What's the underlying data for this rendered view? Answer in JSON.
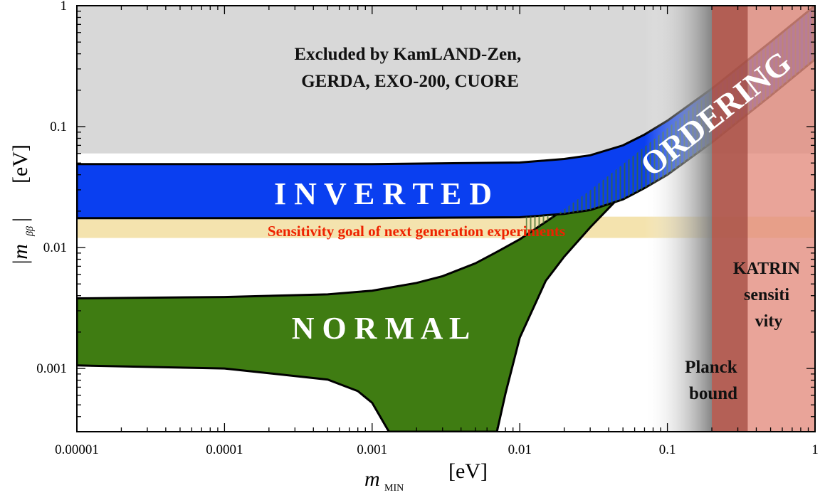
{
  "chart_data": {
    "type": "area",
    "xlabel": {
      "symbol": "m",
      "subscript": "MIN",
      "unit": "[eV]"
    },
    "ylabel": {
      "text": "|m",
      "subscript": "ββ",
      "bar": "|",
      "unit": "[eV]"
    },
    "x_scale": "log",
    "y_scale": "log",
    "xlim": [
      1e-05,
      1
    ],
    "ylim": [
      0.0003,
      1
    ],
    "x_ticks": [
      1e-05,
      0.0001,
      0.001,
      0.01,
      0.1,
      1
    ],
    "x_tick_labels": [
      "0.00001",
      "0.0001",
      "0.001",
      "0.01",
      "0.1",
      "1"
    ],
    "y_ticks": [
      0.001,
      0.01,
      0.1,
      1
    ],
    "y_tick_labels": [
      "0.001",
      "0.01",
      "0.1",
      "1"
    ],
    "regions": {
      "excluded": {
        "y_from": 0.06,
        "y_to": 1,
        "label_lines": [
          "Excluded by KamLAND-Zen,",
          "GERDA, EXO-200, CUORE"
        ],
        "color": "#d8d8d8"
      },
      "sensitivity_goal": {
        "y_from": 0.012,
        "y_to": 0.018,
        "label": "Sensitivity goal of next generation experiments",
        "color": "#f2dea0",
        "label_color": "#ee2200"
      },
      "planck": {
        "x_from": 0.07,
        "x_to": 0.2,
        "label_lines": [
          "Planck",
          "bound"
        ],
        "color": "#909090"
      },
      "katrin": {
        "x_from": 0.2,
        "x_to": 1,
        "dark_to": 0.35,
        "label_lines": [
          "KATRIN",
          "sensiti",
          "vity"
        ],
        "color": "#e38d80",
        "dark_color": "#a24a40"
      }
    },
    "bands": [
      {
        "name": "INVERTED",
        "color": "#0a3ff0",
        "upper": {
          "x": [
            1e-05,
            0.001,
            0.01,
            0.02,
            0.03,
            0.05,
            0.07,
            0.1,
            0.2,
            0.5,
            1
          ],
          "y": [
            0.049,
            0.049,
            0.0505,
            0.054,
            0.058,
            0.07,
            0.086,
            0.112,
            0.206,
            0.502,
            1.0
          ]
        },
        "lower": {
          "x": [
            1e-05,
            0.001,
            0.01,
            0.02,
            0.03,
            0.05,
            0.07,
            0.1,
            0.2,
            0.5,
            1
          ],
          "y": [
            0.0175,
            0.0175,
            0.0178,
            0.019,
            0.0204,
            0.025,
            0.031,
            0.04,
            0.074,
            0.18,
            0.36
          ]
        }
      },
      {
        "name": "NORMAL",
        "color": "#3f7c12",
        "upper": {
          "x": [
            1e-05,
            0.0001,
            0.0005,
            0.001,
            0.002,
            0.003,
            0.005,
            0.007,
            0.01,
            0.015,
            0.02,
            0.03,
            0.05,
            0.07,
            0.1,
            0.2,
            0.5,
            1
          ],
          "y": [
            0.0038,
            0.0039,
            0.0041,
            0.0044,
            0.0051,
            0.0058,
            0.0074,
            0.0092,
            0.0117,
            0.0163,
            0.0207,
            0.0298,
            0.049,
            0.068,
            0.097,
            0.195,
            0.49,
            0.98
          ]
        },
        "lower": {
          "x": [
            1e-05,
            0.0001,
            0.0005,
            0.0008,
            0.001,
            0.0013,
            0.002,
            0.003,
            0.004,
            0.005,
            0.006,
            0.007,
            0.008,
            0.01,
            0.015,
            0.02,
            0.03,
            0.05,
            0.07,
            0.1,
            0.2,
            0.5,
            1
          ],
          "y": [
            0.00106,
            0.001,
            0.00081,
            0.00065,
            0.00052,
            0.0003,
            0.0003,
            0.0003,
            0.0003,
            0.0003,
            0.0003,
            0.0003,
            0.00062,
            0.0018,
            0.0053,
            0.0084,
            0.0147,
            0.028,
            0.041,
            0.06,
            0.121,
            0.305,
            0.61
          ]
        }
      }
    ],
    "band_labels": [
      "I N V E R T E D",
      "N O R M A L",
      "ORDERING"
    ]
  }
}
